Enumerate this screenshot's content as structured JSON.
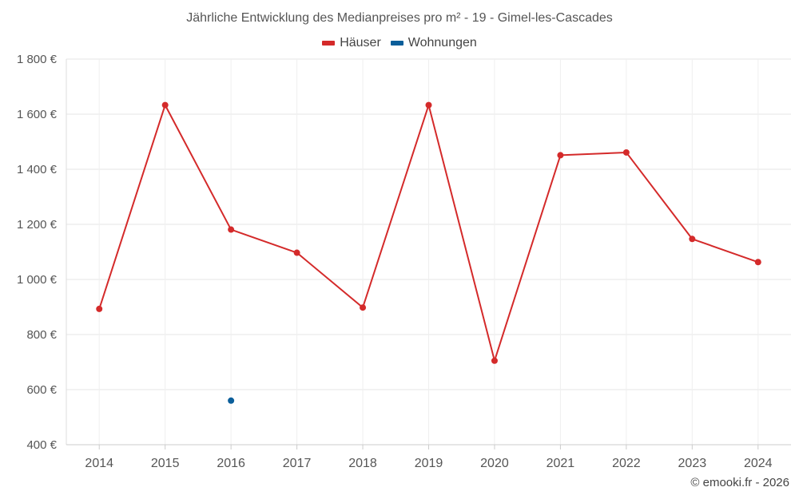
{
  "chart_data": {
    "type": "line",
    "title": "Jährliche Entwicklung des Medianpreises pro m² - 19 - Gimel-les-Cascades",
    "xlabel": "",
    "ylabel": "",
    "x": [
      "2014",
      "2015",
      "2016",
      "2017",
      "2018",
      "2019",
      "2020",
      "2021",
      "2022",
      "2023",
      "2024"
    ],
    "ylim": [
      400,
      1800
    ],
    "yticks": [
      400,
      600,
      800,
      1000,
      1200,
      1400,
      1600,
      1800
    ],
    "ytick_labels": [
      "400 €",
      "600 €",
      "800 €",
      "1 000 €",
      "1 200 €",
      "1 400 €",
      "1 600 €",
      "1 800 €"
    ],
    "grid": true,
    "legend_position": "top-center",
    "series": [
      {
        "name": "Häuser",
        "color": "#d42a2a",
        "values": [
          893,
          1633,
          1181,
          1097,
          898,
          1633,
          705,
          1451,
          1461,
          1147,
          1063
        ]
      },
      {
        "name": "Wohnungen",
        "color": "#0b5e9a",
        "values": [
          null,
          null,
          560,
          null,
          null,
          null,
          null,
          null,
          null,
          null,
          null
        ]
      }
    ]
  },
  "credit": "© emooki.fr - 2026"
}
